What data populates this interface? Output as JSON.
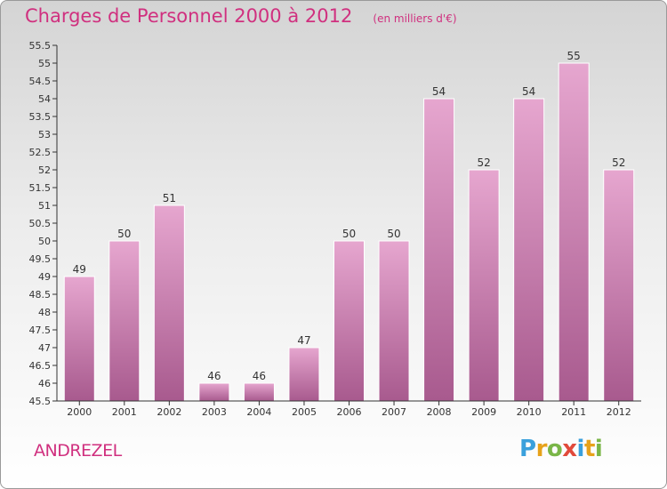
{
  "title": "Charges de Personnel 2000 à 2012",
  "unit_note": "(en milliers d'€)",
  "commune": "ANDREZEL",
  "logo": {
    "letters": [
      "P",
      "r",
      "o",
      "x",
      "i",
      "t",
      "i"
    ],
    "colors": [
      "#3aa0dc",
      "#e7a21a",
      "#7ab648",
      "#e14a3b",
      "#3aa0dc",
      "#e7a21a",
      "#7ab648"
    ]
  },
  "colors": {
    "title": "#d0307f",
    "bar_top": "#e6a6cf",
    "bar_bottom": "#a85a8e"
  },
  "chart_data": {
    "type": "bar",
    "categories": [
      "2000",
      "2001",
      "2002",
      "2003",
      "2004",
      "2005",
      "2006",
      "2007",
      "2008",
      "2009",
      "2010",
      "2011",
      "2012"
    ],
    "values": [
      49,
      50,
      51,
      46,
      46,
      47,
      50,
      50,
      54,
      52,
      54,
      55,
      52
    ],
    "data_labels": [
      "49",
      "50",
      "51",
      "46",
      "46",
      "47",
      "50",
      "50",
      "54",
      "52",
      "54",
      "55",
      "52"
    ],
    "ylim": [
      45.5,
      55.5
    ],
    "yticks": [
      "45.5",
      "46",
      "46.5",
      "47",
      "47.5",
      "48",
      "48.5",
      "49",
      "49.5",
      "50",
      "50.5",
      "51",
      "51.5",
      "52",
      "52.5",
      "53",
      "53.5",
      "54",
      "54.5",
      "55",
      "55.5"
    ],
    "grid": false,
    "legend": "none"
  }
}
